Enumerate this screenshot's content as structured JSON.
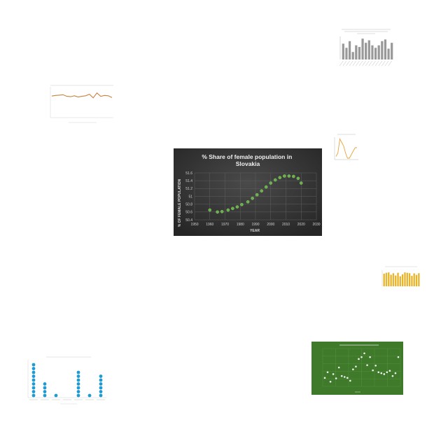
{
  "chart_data": [
    {
      "type": "scatter",
      "title": "% Share of female population in Slovakia",
      "xlabel": "YEAR",
      "ylabel": "% OF FEMALE POPULATION",
      "xlim": [
        1950,
        2030
      ],
      "ylim": [
        50.4,
        51.6
      ],
      "x_ticks": [
        "1950",
        "1960",
        "1970",
        "1980",
        "1990",
        "2000",
        "2010",
        "2020",
        "2030"
      ],
      "y_ticks": [
        "50.4",
        "50.6",
        "50.8",
        "51",
        "51.2",
        "51.4",
        "51.6"
      ],
      "x": [
        1960,
        1965,
        1968,
        1972,
        1975,
        1978,
        1981,
        1985,
        1988,
        1991,
        1994,
        1997,
        2000,
        2003,
        2006,
        2009,
        2012,
        2015,
        2018,
        2020
      ],
      "y": [
        50.65,
        50.6,
        50.61,
        50.65,
        50.69,
        50.73,
        50.79,
        50.86,
        50.95,
        51.04,
        51.14,
        51.24,
        51.34,
        51.42,
        51.48,
        51.52,
        51.52,
        51.51,
        51.46,
        51.34
      ],
      "grid": true,
      "colors": {
        "background": "#3b3b3b",
        "point": "#6ab04c",
        "text": "#f0f0f0"
      }
    },
    {
      "type": "line",
      "x": [
        1,
        2,
        3,
        4,
        5,
        6,
        7,
        8,
        9,
        10,
        11,
        12,
        13,
        14,
        15,
        16,
        17
      ],
      "y": [
        70,
        72,
        73,
        74,
        69,
        68,
        71,
        67,
        69,
        71,
        76,
        64,
        80,
        69,
        72,
        71,
        65
      ],
      "ylim": [
        0,
        100
      ],
      "colors": {
        "line": "#c8823f"
      }
    },
    {
      "type": "bar",
      "values": [
        19000,
        14000,
        22000,
        9000,
        17000,
        15000,
        25000,
        20000,
        23000,
        17000,
        14000,
        17000,
        22000,
        24000,
        13000,
        20000
      ],
      "colors": {
        "bar": "#999999"
      }
    },
    {
      "type": "line",
      "x": [
        1,
        2,
        3,
        4,
        5,
        6,
        7,
        8,
        9,
        10,
        11,
        12
      ],
      "y": [
        1,
        3,
        11,
        9,
        7,
        3,
        0,
        0,
        2,
        4,
        6,
        6
      ],
      "colors": {
        "line": "#e8a33a"
      }
    },
    {
      "type": "bar",
      "values": [
        82,
        88,
        90,
        75,
        85,
        70,
        88,
        65,
        78,
        90,
        88,
        85,
        68,
        84,
        74,
        85
      ],
      "colors": {
        "bar": "#e8b42a"
      }
    },
    {
      "type": "scatter",
      "categories": [
        "",
        "",
        "",
        "",
        "",
        "",
        ""
      ],
      "counts": [
        9,
        4,
        1,
        0,
        7,
        1,
        6
      ],
      "colors": {
        "dot": "#1f9bd1"
      }
    },
    {
      "type": "scatter",
      "x": [
        1,
        2,
        3,
        4,
        5,
        6,
        7,
        8,
        9,
        10,
        11,
        12,
        13,
        14,
        15,
        16,
        17,
        18,
        19,
        20,
        21,
        22,
        23,
        24,
        25,
        26,
        27
      ],
      "y": [
        18,
        30,
        10,
        26,
        17,
        40,
        22,
        20,
        18,
        12,
        36,
        42,
        58,
        62,
        70,
        45,
        62,
        34,
        44,
        30,
        28,
        26,
        30,
        33,
        22,
        28,
        62
      ],
      "ylim": [
        0,
        80
      ],
      "colors": {
        "background": "#3f7a2a",
        "point": "#f0f0f0"
      }
    }
  ]
}
